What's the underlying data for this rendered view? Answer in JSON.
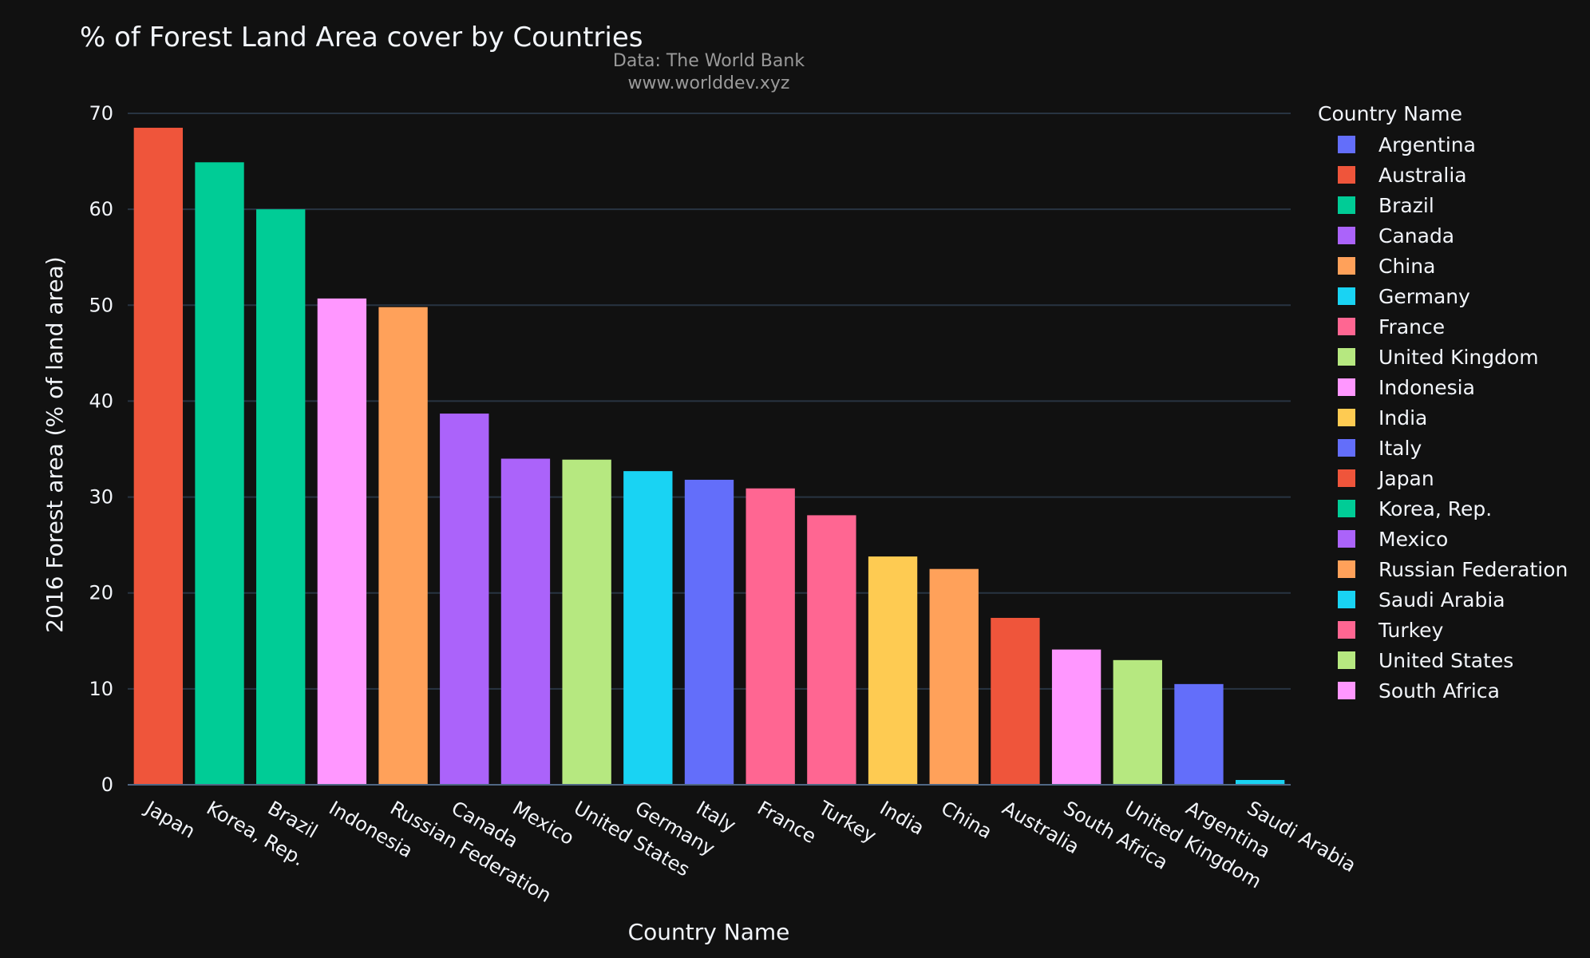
{
  "chart_data": {
    "type": "bar",
    "title": "% of Forest Land Area cover by Countries",
    "subtitle_lines": [
      "Data: The World Bank",
      "www.worlddev.xyz"
    ],
    "xlabel": "Country Name",
    "ylabel": "2016 Forest area (% of land area)",
    "ylim": [
      0,
      71
    ],
    "yticks": [
      0,
      10,
      20,
      30,
      40,
      50,
      60,
      70
    ],
    "grid": true,
    "legend": {
      "title": "Country Name",
      "placement": "right",
      "entries": [
        {
          "name": "Argentina",
          "color": "#636efa"
        },
        {
          "name": "Australia",
          "color": "#ef553b"
        },
        {
          "name": "Brazil",
          "color": "#00cc96"
        },
        {
          "name": "Canada",
          "color": "#ab63fa"
        },
        {
          "name": "China",
          "color": "#ffa15a"
        },
        {
          "name": "Germany",
          "color": "#19d3f3"
        },
        {
          "name": "France",
          "color": "#ff6692"
        },
        {
          "name": "United Kingdom",
          "color": "#b6e880"
        },
        {
          "name": "Indonesia",
          "color": "#ff97ff"
        },
        {
          "name": "India",
          "color": "#fecb52"
        },
        {
          "name": "Italy",
          "color": "#636efa"
        },
        {
          "name": "Japan",
          "color": "#ef553b"
        },
        {
          "name": "Korea, Rep.",
          "color": "#00cc96"
        },
        {
          "name": "Mexico",
          "color": "#ab63fa"
        },
        {
          "name": "Russian Federation",
          "color": "#ffa15a"
        },
        {
          "name": "Saudi Arabia",
          "color": "#19d3f3"
        },
        {
          "name": "Turkey",
          "color": "#ff6692"
        },
        {
          "name": "United States",
          "color": "#b6e880"
        },
        {
          "name": "South Africa",
          "color": "#ff97ff"
        }
      ]
    },
    "categories": [
      "Japan",
      "Korea, Rep.",
      "Brazil",
      "Indonesia",
      "Russian Federation",
      "Canada",
      "Mexico",
      "United States",
      "Germany",
      "Italy",
      "France",
      "Turkey",
      "India",
      "China",
      "Australia",
      "South Africa",
      "United Kingdom",
      "Argentina",
      "Saudi Arabia"
    ],
    "values": [
      68.5,
      64.9,
      60.0,
      50.7,
      49.8,
      38.7,
      34.0,
      33.9,
      32.7,
      31.8,
      30.9,
      28.1,
      23.8,
      22.5,
      17.4,
      14.1,
      13.0,
      10.5,
      0.5
    ],
    "colors": [
      "#ef553b",
      "#00cc96",
      "#00cc96",
      "#ff97ff",
      "#ffa15a",
      "#ab63fa",
      "#ab63fa",
      "#b6e880",
      "#19d3f3",
      "#636efa",
      "#ff6692",
      "#ff6692",
      "#fecb52",
      "#ffa15a",
      "#ef553b",
      "#ff97ff",
      "#b6e880",
      "#636efa",
      "#19d3f3"
    ]
  }
}
